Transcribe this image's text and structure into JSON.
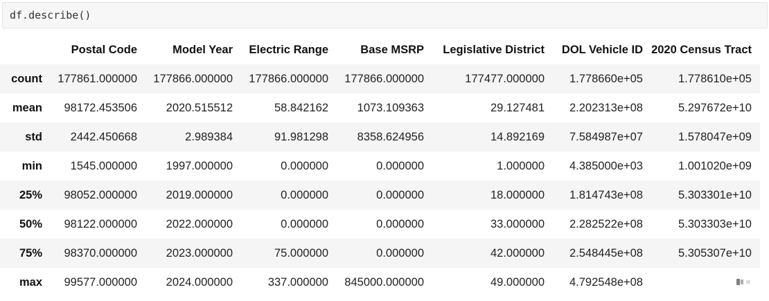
{
  "code_cell": {
    "source": "df.describe()"
  },
  "table": {
    "columns": [
      "Postal Code",
      "Model Year",
      "Electric Range",
      "Base MSRP",
      "Legislative District",
      "DOL Vehicle ID",
      "2020 Census Tract"
    ],
    "rows": [
      {
        "label": "count",
        "values": [
          "177861.000000",
          "177866.000000",
          "177866.000000",
          "177866.000000",
          "177477.000000",
          "1.778660e+05",
          "1.778610e+05"
        ]
      },
      {
        "label": "mean",
        "values": [
          "98172.453506",
          "2020.515512",
          "58.842162",
          "1073.109363",
          "29.127481",
          "2.202313e+08",
          "5.297672e+10"
        ]
      },
      {
        "label": "std",
        "values": [
          "2442.450668",
          "2.989384",
          "91.981298",
          "8358.624956",
          "14.892169",
          "7.584987e+07",
          "1.578047e+09"
        ]
      },
      {
        "label": "min",
        "values": [
          "1545.000000",
          "1997.000000",
          "0.000000",
          "0.000000",
          "1.000000",
          "4.385000e+03",
          "1.001020e+09"
        ]
      },
      {
        "label": "25%",
        "values": [
          "98052.000000",
          "2019.000000",
          "0.000000",
          "0.000000",
          "18.000000",
          "1.814743e+08",
          "5.303301e+10"
        ]
      },
      {
        "label": "50%",
        "values": [
          "98122.000000",
          "2022.000000",
          "0.000000",
          "0.000000",
          "33.000000",
          "2.282522e+08",
          "5.303303e+10"
        ]
      },
      {
        "label": "75%",
        "values": [
          "98370.000000",
          "2023.000000",
          "75.000000",
          "0.000000",
          "42.000000",
          "2.548445e+08",
          "5.305307e+10"
        ]
      },
      {
        "label": "max",
        "values": [
          "99577.000000",
          "2024.000000",
          "337.000000",
          "845000.000000",
          "49.000000",
          "4.792548e+08",
          ""
        ]
      }
    ]
  },
  "colors": {
    "stripe": "#f5f5f5",
    "code_bg": "#f7f7f7"
  }
}
